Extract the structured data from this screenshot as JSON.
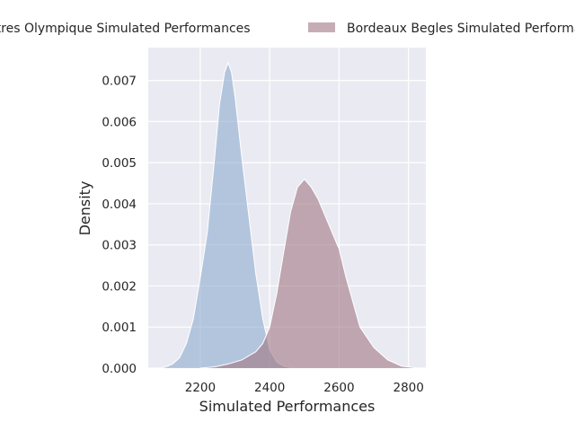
{
  "chart_data": {
    "type": "area",
    "title": "",
    "xlabel": "Simulated Performances",
    "ylabel": "Density",
    "xlim": [
      2050,
      2850
    ],
    "ylim": [
      0,
      0.0078
    ],
    "xticks": [
      2200,
      2400,
      2600,
      2800
    ],
    "yticks": [
      0.0,
      0.001,
      0.002,
      0.003,
      0.004,
      0.005,
      0.006,
      0.007
    ],
    "grid": true,
    "legend_placement": "top",
    "series": [
      {
        "name": "Castres Olympique Simulated Performances",
        "color": "#8daccf",
        "x": [
          2085,
          2100,
          2120,
          2140,
          2160,
          2180,
          2200,
          2220,
          2240,
          2255,
          2270,
          2280,
          2290,
          2300,
          2320,
          2340,
          2360,
          2380,
          2400,
          2420,
          2440,
          2460,
          2480
        ],
        "y": [
          0.0,
          3e-05,
          0.0001,
          0.00025,
          0.0006,
          0.0012,
          0.0022,
          0.0033,
          0.005,
          0.0064,
          0.0072,
          0.00743,
          0.0072,
          0.0066,
          0.0051,
          0.0037,
          0.0023,
          0.0012,
          0.00045,
          0.00015,
          5e-05,
          1e-05,
          0.0
        ]
      },
      {
        "name": "Bordeaux Begles Simulated Performances",
        "color": "#a07684",
        "x": [
          2200,
          2240,
          2280,
          2320,
          2360,
          2380,
          2400,
          2420,
          2440,
          2460,
          2480,
          2500,
          2520,
          2540,
          2560,
          2580,
          2600,
          2620,
          2640,
          2660,
          2700,
          2740,
          2780,
          2830
        ],
        "y": [
          0.0,
          3e-05,
          0.0001,
          0.0002,
          0.0004,
          0.0006,
          0.001,
          0.0018,
          0.0028,
          0.0038,
          0.0044,
          0.0046,
          0.0044,
          0.0041,
          0.0037,
          0.0033,
          0.0029,
          0.0022,
          0.0016,
          0.001,
          0.0005,
          0.0002,
          5e-05,
          0.0
        ]
      }
    ]
  }
}
